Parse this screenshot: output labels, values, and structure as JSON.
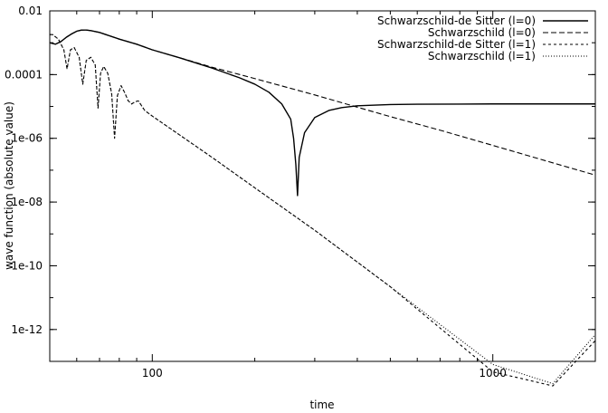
{
  "chart_data": {
    "type": "line",
    "title": "",
    "xlabel": "time",
    "ylabel": "wave function (absolute value)",
    "x_scale": "log",
    "y_scale": "log",
    "xlim": [
      50,
      2000
    ],
    "ylim": [
      1e-13,
      0.01
    ],
    "x_ticks": [
      {
        "value": 100,
        "label": "100"
      },
      {
        "value": 1000,
        "label": "1000"
      }
    ],
    "y_ticks": [
      {
        "value": 0.01,
        "label": "0.01"
      },
      {
        "value": 0.0001,
        "label": "0.0001"
      },
      {
        "value": 1e-06,
        "label": "1e-06"
      },
      {
        "value": 1e-08,
        "label": "1e-08"
      },
      {
        "value": 1e-10,
        "label": "1e-10"
      },
      {
        "value": 1e-12,
        "label": "1e-12"
      }
    ],
    "grid": false,
    "legend_position": "top-right",
    "series": [
      {
        "name": "Schwarzschild-de Sitter (l=0)",
        "dash": "solid",
        "x": [
          50,
          52,
          54,
          56,
          58,
          60,
          62,
          64,
          66,
          70,
          80,
          90,
          100,
          120,
          150,
          180,
          200,
          220,
          240,
          255,
          260,
          264,
          267,
          270,
          280,
          300,
          330,
          360,
          400,
          500,
          600,
          800,
          1000,
          1500,
          2000
        ],
        "y": [
          0.001,
          0.0009,
          0.0011,
          0.0015,
          0.0019,
          0.0023,
          0.0025,
          0.0025,
          0.0024,
          0.0021,
          0.0013,
          0.0009,
          0.0006,
          0.00034,
          0.00016,
          8e-05,
          5e-05,
          2.8e-05,
          1.2e-05,
          4e-06,
          1e-06,
          1.5e-07,
          1.6e-08,
          2.5e-07,
          1.5e-06,
          4.5e-06,
          7.5e-06,
          9.2e-06,
          1.05e-05,
          1.15e-05,
          1.18e-05,
          1.19e-05,
          1.2e-05,
          1.2e-05,
          1.2e-05
        ]
      },
      {
        "name": "Schwarzschild (l=0)",
        "dash": "long-dash",
        "x": [
          50,
          52,
          54,
          56,
          58,
          60,
          62,
          64,
          66,
          70,
          80,
          90,
          100,
          120,
          150,
          200,
          300,
          400,
          500,
          700,
          1000,
          1500,
          2000
        ],
        "y": [
          0.001,
          0.0009,
          0.0011,
          0.0015,
          0.0019,
          0.0023,
          0.0025,
          0.0025,
          0.0024,
          0.0021,
          0.0013,
          0.0009,
          0.0006,
          0.00034,
          0.00017,
          7.5e-05,
          2.3e-05,
          9.5e-06,
          4.8e-06,
          1.8e-06,
          6e-07,
          1.7e-07,
          7e-08
        ]
      },
      {
        "name": "Schwarzschild-de Sitter (l=1)",
        "dash": "short-dash",
        "x": [
          50,
          51,
          53,
          55,
          56.2,
          57.5,
          59,
          61,
          62.5,
          64,
          66,
          68,
          69.3,
          70.5,
          72,
          74,
          76,
          77.5,
          79,
          81,
          83,
          85,
          87,
          89,
          91,
          95,
          100,
          150,
          200,
          300,
          500,
          1000,
          1500,
          2000
        ],
        "y": [
          0.0018,
          0.0018,
          0.0013,
          0.0006,
          0.00015,
          0.0006,
          0.0007,
          0.00035,
          5e-05,
          0.00028,
          0.00035,
          0.0002,
          9e-06,
          0.00011,
          0.00018,
          0.00011,
          2.5e-05,
          1e-06,
          2.2e-05,
          4.5e-05,
          2.7e-05,
          1.5e-05,
          1.2e-05,
          1.4e-05,
          1.5e-05,
          7.5e-06,
          5e-06,
          2.5e-07,
          2.8e-08,
          1.3e-09,
          2.2e-11,
          4.7e-14,
          1.7e-14,
          4.5e-13
        ]
      },
      {
        "name": "Schwarzschild (l=1)",
        "dash": "dotted",
        "x": [
          50,
          51,
          53,
          55,
          56.2,
          57.5,
          59,
          61,
          62.5,
          64,
          66,
          68,
          69.3,
          70.5,
          72,
          74,
          76,
          77.5,
          79,
          81,
          83,
          85,
          87,
          89,
          91,
          95,
          100,
          150,
          200,
          300,
          500,
          1000,
          1500,
          2000
        ],
        "y": [
          0.0018,
          0.0018,
          0.0013,
          0.0006,
          0.00015,
          0.0006,
          0.0007,
          0.00035,
          5e-05,
          0.00028,
          0.00035,
          0.0002,
          9e-06,
          0.00011,
          0.00018,
          0.00011,
          2.5e-05,
          1e-06,
          2.2e-05,
          4.5e-05,
          2.7e-05,
          1.5e-05,
          1.2e-05,
          1.4e-05,
          1.5e-05,
          7.5e-06,
          5e-06,
          2.5e-07,
          2.8e-08,
          1.3e-09,
          2.2e-11,
          8e-14,
          2e-14,
          7e-13
        ]
      }
    ]
  }
}
